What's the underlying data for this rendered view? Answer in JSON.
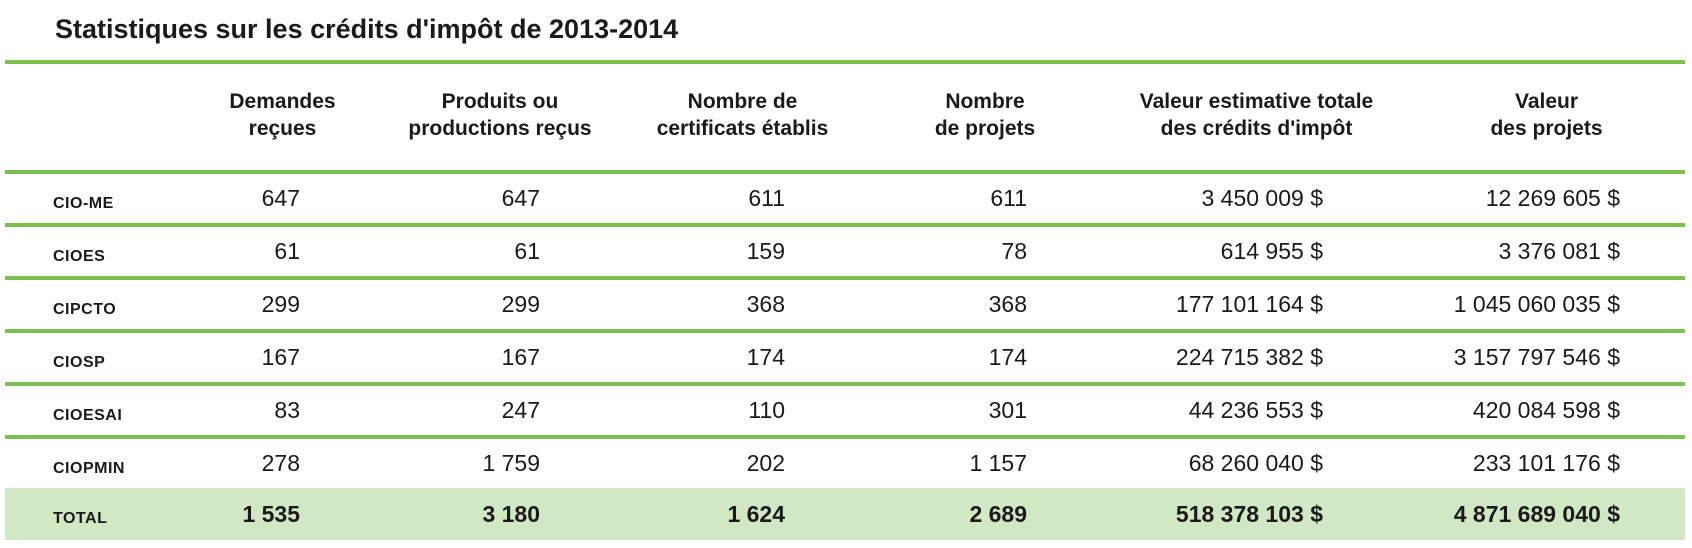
{
  "title": "Statistiques sur les crédits d'impôt de 2013-2014",
  "headers": [
    "",
    "Demandes\nreçues",
    "Produits ou\nproductions reçus",
    "Nombre de\ncertificats établis",
    "Nombre\nde projets",
    "Valeur estimative totale\ndes crédits d'impôt",
    "Valeur\ndes projets"
  ],
  "rows": [
    [
      "CIO-ME",
      "647",
      "647",
      "611",
      "611",
      "3 450 009 $",
      "12 269 605 $"
    ],
    [
      "CIOES",
      "61",
      "61",
      "159",
      "78",
      "614 955 $",
      "3 376 081 $"
    ],
    [
      "CIPCTO",
      "299",
      "299",
      "368",
      "368",
      "177 101 164 $",
      "1 045 060 035 $"
    ],
    [
      "CIOSP",
      "167",
      "167",
      "174",
      "174",
      "224 715 382 $",
      "3 157 797 546 $"
    ],
    [
      "CIOESAI",
      "83",
      "247",
      "110",
      "301",
      "44 236 553 $",
      "420 084 598 $"
    ],
    [
      "CIOPMIN",
      "278",
      "1 759",
      "202",
      "1 157",
      "68 260 040 $",
      "233 101 176 $"
    ]
  ],
  "total": [
    "TOTAL",
    "1 535",
    "3 180",
    "1 624",
    "2 689",
    "518 378 103 $",
    "4 871 689 040 $"
  ],
  "colors": {
    "accent": "#7cc04f",
    "total_bg": "#d2e8c4"
  }
}
